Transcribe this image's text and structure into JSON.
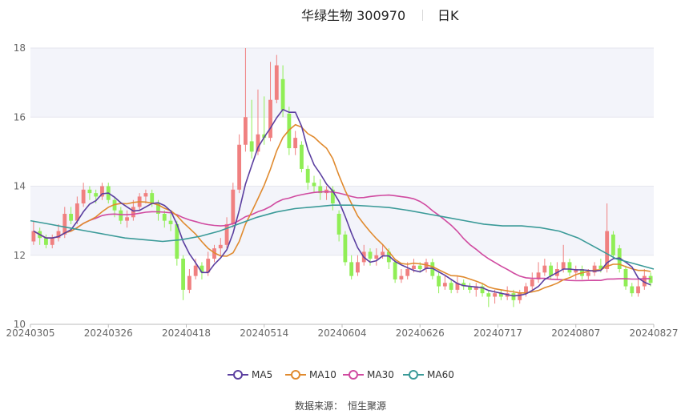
{
  "header": {
    "stock": "华绿生物 300970",
    "period": "日K"
  },
  "footer": {
    "label": "数据来源：",
    "source": "恒生聚源"
  },
  "colors": {
    "up": "#f08080",
    "down": "#90ee56",
    "ma5": "#5b3fa0",
    "ma10": "#e08a2e",
    "ma30": "#d04aa0",
    "ma60": "#3a9a98",
    "band": "#f3f4fa",
    "grid": "#e6e6ee"
  },
  "chart_data": {
    "type": "candlestick",
    "title": "华绿生物 300970",
    "ylim": [
      10,
      18
    ],
    "yticks": [
      "10",
      "12",
      "14",
      "16",
      "18"
    ],
    "xticks": [
      "20240305",
      "20240326",
      "20240418",
      "20240514",
      "20240604",
      "20240626",
      "20240717",
      "20240807",
      "20240827"
    ],
    "legend": [
      "MA5",
      "MA10",
      "MA30",
      "MA60"
    ],
    "candles": [
      {
        "o": 12.4,
        "c": 12.7,
        "h": 13.0,
        "l": 12.3
      },
      {
        "o": 12.7,
        "c": 12.5,
        "h": 12.8,
        "l": 12.3
      },
      {
        "o": 12.5,
        "c": 12.3,
        "h": 12.6,
        "l": 12.2
      },
      {
        "o": 12.3,
        "c": 12.5,
        "h": 12.6,
        "l": 12.2
      },
      {
        "o": 12.5,
        "c": 12.7,
        "h": 12.9,
        "l": 12.4
      },
      {
        "o": 12.6,
        "c": 13.2,
        "h": 13.4,
        "l": 12.5
      },
      {
        "o": 13.2,
        "c": 13.0,
        "h": 13.4,
        "l": 12.9
      },
      {
        "o": 13.0,
        "c": 13.5,
        "h": 13.7,
        "l": 12.9
      },
      {
        "o": 13.5,
        "c": 13.9,
        "h": 14.1,
        "l": 13.4
      },
      {
        "o": 13.9,
        "c": 13.8,
        "h": 14.0,
        "l": 13.6
      },
      {
        "o": 13.8,
        "c": 13.7,
        "h": 13.9,
        "l": 13.5
      },
      {
        "o": 13.7,
        "c": 14.0,
        "h": 14.1,
        "l": 13.6
      },
      {
        "o": 14.0,
        "c": 13.6,
        "h": 14.1,
        "l": 13.5
      },
      {
        "o": 13.6,
        "c": 13.3,
        "h": 13.7,
        "l": 13.1
      },
      {
        "o": 13.3,
        "c": 13.0,
        "h": 13.4,
        "l": 12.9
      },
      {
        "o": 13.0,
        "c": 13.1,
        "h": 13.3,
        "l": 12.8
      },
      {
        "o": 13.1,
        "c": 13.4,
        "h": 13.6,
        "l": 13.0
      },
      {
        "o": 13.4,
        "c": 13.7,
        "h": 13.8,
        "l": 13.3
      },
      {
        "o": 13.7,
        "c": 13.8,
        "h": 13.9,
        "l": 13.5
      },
      {
        "o": 13.8,
        "c": 13.5,
        "h": 13.9,
        "l": 13.4
      },
      {
        "o": 13.5,
        "c": 13.2,
        "h": 13.6,
        "l": 13.0
      },
      {
        "o": 13.2,
        "c": 13.0,
        "h": 13.3,
        "l": 12.8
      },
      {
        "o": 13.0,
        "c": 12.9,
        "h": 13.2,
        "l": 12.7
      },
      {
        "o": 12.9,
        "c": 11.9,
        "h": 13.0,
        "l": 11.7
      },
      {
        "o": 11.9,
        "c": 11.0,
        "h": 12.0,
        "l": 10.7
      },
      {
        "o": 11.0,
        "c": 11.4,
        "h": 11.6,
        "l": 10.9
      },
      {
        "o": 11.4,
        "c": 11.7,
        "h": 11.9,
        "l": 11.3
      },
      {
        "o": 11.7,
        "c": 11.5,
        "h": 11.8,
        "l": 11.3
      },
      {
        "o": 11.5,
        "c": 11.9,
        "h": 12.1,
        "l": 11.4
      },
      {
        "o": 11.9,
        "c": 12.2,
        "h": 12.3,
        "l": 11.8
      },
      {
        "o": 12.2,
        "c": 12.3,
        "h": 12.5,
        "l": 12.0
      },
      {
        "o": 12.3,
        "c": 12.9,
        "h": 13.1,
        "l": 12.2
      },
      {
        "o": 12.9,
        "c": 13.9,
        "h": 14.1,
        "l": 12.8
      },
      {
        "o": 13.9,
        "c": 15.2,
        "h": 15.5,
        "l": 13.8
      },
      {
        "o": 15.2,
        "c": 16.0,
        "h": 18.0,
        "l": 15.0
      },
      {
        "o": 15.3,
        "c": 15.0,
        "h": 16.5,
        "l": 14.8
      },
      {
        "o": 15.0,
        "c": 15.5,
        "h": 16.8,
        "l": 14.9
      },
      {
        "o": 15.5,
        "c": 15.4,
        "h": 16.6,
        "l": 15.2
      },
      {
        "o": 15.4,
        "c": 16.5,
        "h": 17.6,
        "l": 15.3
      },
      {
        "o": 16.5,
        "c": 17.5,
        "h": 17.8,
        "l": 16.4
      },
      {
        "o": 17.1,
        "c": 16.2,
        "h": 17.5,
        "l": 16.0
      },
      {
        "o": 16.1,
        "c": 15.1,
        "h": 16.3,
        "l": 14.9
      },
      {
        "o": 15.1,
        "c": 15.4,
        "h": 15.6,
        "l": 14.9
      },
      {
        "o": 15.2,
        "c": 14.5,
        "h": 15.3,
        "l": 14.4
      },
      {
        "o": 14.5,
        "c": 14.1,
        "h": 14.6,
        "l": 13.9
      },
      {
        "o": 14.1,
        "c": 14.0,
        "h": 14.3,
        "l": 13.8
      },
      {
        "o": 14.0,
        "c": 13.8,
        "h": 14.2,
        "l": 13.6
      },
      {
        "o": 13.8,
        "c": 13.9,
        "h": 14.0,
        "l": 13.6
      },
      {
        "o": 13.9,
        "c": 13.5,
        "h": 14.0,
        "l": 13.3
      },
      {
        "o": 13.2,
        "c": 12.6,
        "h": 13.3,
        "l": 12.4
      },
      {
        "o": 12.6,
        "c": 11.8,
        "h": 12.7,
        "l": 11.7
      },
      {
        "o": 11.8,
        "c": 11.4,
        "h": 12.0,
        "l": 11.3
      },
      {
        "o": 11.5,
        "c": 11.8,
        "h": 12.0,
        "l": 11.4
      },
      {
        "o": 11.8,
        "c": 12.1,
        "h": 12.3,
        "l": 11.7
      },
      {
        "o": 12.1,
        "c": 11.9,
        "h": 12.2,
        "l": 11.7
      },
      {
        "o": 11.9,
        "c": 12.0,
        "h": 12.2,
        "l": 11.7
      },
      {
        "o": 12.0,
        "c": 12.1,
        "h": 12.3,
        "l": 11.9
      },
      {
        "o": 12.1,
        "c": 11.8,
        "h": 12.2,
        "l": 11.6
      },
      {
        "o": 11.8,
        "c": 11.3,
        "h": 11.9,
        "l": 11.2
      },
      {
        "o": 11.3,
        "c": 11.4,
        "h": 11.6,
        "l": 11.2
      },
      {
        "o": 11.4,
        "c": 11.6,
        "h": 11.8,
        "l": 11.3
      },
      {
        "o": 11.6,
        "c": 11.7,
        "h": 11.9,
        "l": 11.5
      },
      {
        "o": 11.7,
        "c": 11.6,
        "h": 11.8,
        "l": 11.5
      },
      {
        "o": 11.6,
        "c": 11.8,
        "h": 11.9,
        "l": 11.5
      },
      {
        "o": 11.8,
        "c": 11.4,
        "h": 11.9,
        "l": 11.3
      },
      {
        "o": 11.4,
        "c": 11.1,
        "h": 11.5,
        "l": 10.9
      },
      {
        "o": 11.1,
        "c": 11.2,
        "h": 11.4,
        "l": 11.0
      },
      {
        "o": 11.2,
        "c": 11.0,
        "h": 11.3,
        "l": 10.9
      },
      {
        "o": 11.0,
        "c": 11.2,
        "h": 11.4,
        "l": 10.9
      },
      {
        "o": 11.2,
        "c": 11.1,
        "h": 11.3,
        "l": 11.0
      },
      {
        "o": 11.1,
        "c": 11.0,
        "h": 11.2,
        "l": 10.9
      },
      {
        "o": 11.0,
        "c": 11.1,
        "h": 11.2,
        "l": 10.8
      },
      {
        "o": 11.1,
        "c": 10.9,
        "h": 11.2,
        "l": 10.8
      },
      {
        "o": 10.9,
        "c": 10.8,
        "h": 11.0,
        "l": 10.5
      },
      {
        "o": 10.8,
        "c": 10.9,
        "h": 11.0,
        "l": 10.6
      },
      {
        "o": 10.9,
        "c": 10.8,
        "h": 11.0,
        "l": 10.7
      },
      {
        "o": 10.8,
        "c": 10.9,
        "h": 11.1,
        "l": 10.7
      },
      {
        "o": 10.9,
        "c": 10.7,
        "h": 11.0,
        "l": 10.5
      },
      {
        "o": 10.7,
        "c": 10.9,
        "h": 11.0,
        "l": 10.6
      },
      {
        "o": 10.9,
        "c": 11.1,
        "h": 11.2,
        "l": 10.8
      },
      {
        "o": 11.1,
        "c": 11.3,
        "h": 11.5,
        "l": 11.0
      },
      {
        "o": 11.3,
        "c": 11.5,
        "h": 11.8,
        "l": 11.2
      },
      {
        "o": 11.5,
        "c": 11.7,
        "h": 11.9,
        "l": 11.4
      },
      {
        "o": 11.7,
        "c": 11.4,
        "h": 11.8,
        "l": 11.3
      },
      {
        "o": 11.4,
        "c": 11.6,
        "h": 11.8,
        "l": 11.3
      },
      {
        "o": 11.6,
        "c": 11.8,
        "h": 12.3,
        "l": 11.5
      },
      {
        "o": 11.8,
        "c": 11.5,
        "h": 11.9,
        "l": 11.4
      },
      {
        "o": 11.5,
        "c": 11.6,
        "h": 11.7,
        "l": 11.3
      },
      {
        "o": 11.6,
        "c": 11.4,
        "h": 11.7,
        "l": 11.3
      },
      {
        "o": 11.4,
        "c": 11.5,
        "h": 11.6,
        "l": 11.3
      },
      {
        "o": 11.5,
        "c": 11.7,
        "h": 11.8,
        "l": 11.4
      },
      {
        "o": 11.7,
        "c": 11.6,
        "h": 11.9,
        "l": 11.5
      },
      {
        "o": 11.6,
        "c": 12.7,
        "h": 13.5,
        "l": 11.5
      },
      {
        "o": 12.6,
        "c": 12.0,
        "h": 12.7,
        "l": 11.9
      },
      {
        "o": 12.2,
        "c": 11.6,
        "h": 12.3,
        "l": 11.5
      },
      {
        "o": 11.6,
        "c": 11.1,
        "h": 11.7,
        "l": 11.0
      },
      {
        "o": 11.1,
        "c": 10.9,
        "h": 11.2,
        "l": 10.8
      },
      {
        "o": 10.9,
        "c": 11.1,
        "h": 11.3,
        "l": 10.8
      },
      {
        "o": 11.1,
        "c": 11.4,
        "h": 11.6,
        "l": 11.0
      },
      {
        "o": 11.4,
        "c": 11.2,
        "h": 11.5,
        "l": 11.1
      }
    ],
    "ma60": [
      13.0,
      12.9,
      12.8,
      12.7,
      12.6,
      12.5,
      12.45,
      12.4,
      12.45,
      12.55,
      12.7,
      12.9,
      13.1,
      13.25,
      13.35,
      13.4,
      13.45,
      13.45,
      13.42,
      13.38,
      13.3,
      13.2,
      13.1,
      13.0,
      12.9,
      12.85,
      12.85,
      12.8,
      12.7,
      12.5,
      12.2,
      11.9,
      11.75,
      11.6
    ]
  }
}
